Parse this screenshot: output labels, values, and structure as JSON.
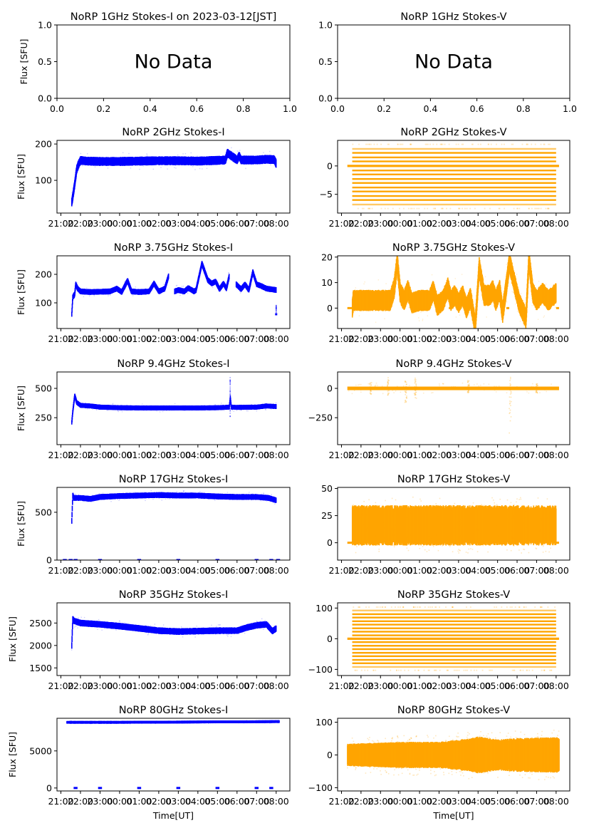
{
  "figure": {
    "date_label": "2023-03-12[JST]",
    "xlabel_bottom": "Time[UT]",
    "ylabel": "Flux [SFU]",
    "no_data_text": "No Data",
    "colors": {
      "stokes_i": "#0000ff",
      "stokes_v": "#ffa500",
      "axes": "#000000"
    }
  },
  "chart_data": [
    {
      "id": "1ghz-i",
      "type": "scatter",
      "row": 0,
      "col": 0,
      "title": "NoRP 1GHz Stokes-I on 2023-03-12[JST]",
      "no_data": true,
      "xlim": [
        0,
        1
      ],
      "ylim": [
        0,
        1
      ],
      "xticks": [
        0.0,
        0.2,
        0.4,
        0.6,
        0.8,
        1.0
      ],
      "xtick_labels": [
        "0.0",
        "0.2",
        "0.4",
        "0.6",
        "0.8",
        "1.0"
      ],
      "yticks": [
        0.0,
        0.5,
        1.0
      ],
      "ytick_labels": [
        "0.0",
        "0.5",
        "1.0"
      ],
      "ylabel": "Flux [SFU]",
      "xlabel": ""
    },
    {
      "id": "1ghz-v",
      "type": "scatter",
      "row": 0,
      "col": 1,
      "title": "NoRP 1GHz Stokes-V",
      "no_data": true,
      "xlim": [
        0,
        1
      ],
      "ylim": [
        0,
        1
      ],
      "xticks": [
        0.0,
        0.2,
        0.4,
        0.6,
        0.8,
        1.0
      ],
      "xtick_labels": [
        "0.0",
        "0.2",
        "0.4",
        "0.6",
        "0.8",
        "1.0"
      ],
      "yticks": [
        0.0,
        0.5,
        1.0
      ],
      "ytick_labels": [
        "0.0",
        "0.5",
        "1.0"
      ],
      "ylabel": "",
      "xlabel": ""
    },
    {
      "id": "2ghz-i",
      "type": "scatter",
      "row": 1,
      "col": 0,
      "stokes": "I",
      "title": "NoRP 2GHz Stokes-I",
      "ylim": [
        10,
        210
      ],
      "yticks": [
        100,
        200
      ],
      "ytick_labels": [
        "100",
        "200"
      ],
      "ylabel": "Flux [SFU]",
      "xlabel": "",
      "x": [
        21.55,
        21.6,
        21.7,
        21.8,
        21.9,
        22.0,
        22.3,
        23.0,
        24.0,
        25.0,
        26.0,
        27.0,
        28.0,
        29.0,
        29.4,
        29.5,
        30.0,
        30.1,
        30.2,
        31.0,
        31.5,
        31.9,
        32.0
      ],
      "y": [
        40,
        55,
        90,
        130,
        145,
        155,
        153,
        152,
        152,
        153,
        154,
        154,
        153,
        155,
        156,
        175,
        156,
        168,
        156,
        156,
        158,
        157,
        145
      ],
      "band": 8
    },
    {
      "id": "2ghz-v",
      "type": "scatter",
      "row": 1,
      "col": 1,
      "stokes": "V",
      "title": "NoRP 2GHz Stokes-V",
      "ylim": [
        -8.3,
        4.5
      ],
      "yticks": [
        -5,
        0
      ],
      "ytick_labels": [
        "−5",
        "0"
      ],
      "ylabel": "",
      "xlabel": "",
      "quantized_levels": [
        3.8,
        3.0,
        2.3,
        1.5,
        0.8,
        0,
        -0.8,
        -1.5,
        -2.3,
        -3.0,
        -3.8,
        -4.5,
        -5.3,
        -6.0,
        -6.8,
        -7.5
      ],
      "x_range": [
        21.55,
        32.0
      ],
      "zero_line_range": [
        21.3,
        32.15
      ]
    },
    {
      "id": "375ghz-i",
      "type": "scatter",
      "row": 2,
      "col": 0,
      "stokes": "I",
      "title": "NoRP 3.75GHz Stokes-I",
      "ylim": [
        10,
        265
      ],
      "yticks": [
        100,
        200
      ],
      "ytick_labels": [
        "100",
        "200"
      ],
      "ylabel": "Flux [SFU]",
      "xlabel": "",
      "x": [
        21.55,
        21.6,
        21.7,
        21.75,
        21.85,
        22.0,
        22.5,
        23.5,
        23.85,
        24.1,
        24.4,
        24.6,
        25.0,
        25.5,
        25.75,
        26.0,
        26.3,
        26.5,
        26.55,
        26.8,
        27.0,
        27.3,
        27.5,
        27.8,
        27.9,
        28.2,
        28.5,
        28.7,
        28.9,
        29.1,
        29.3,
        29.45,
        29.6,
        29.8,
        29.95,
        30.2,
        30.4,
        30.6,
        30.8,
        31.0,
        31.2,
        31.5,
        31.7,
        32.0
      ],
      "y": [
        60,
        120,
        130,
        165,
        150,
        140,
        138,
        140,
        150,
        138,
        178,
        140,
        138,
        140,
        168,
        140,
        150,
        195,
        null,
        140,
        145,
        140,
        152,
        140,
        145,
        238,
        180,
        168,
        175,
        148,
        168,
        150,
        195,
        null,
        165,
        148,
        165,
        145,
        208,
        165,
        160,
        150,
        148,
        145
      ],
      "band": 6,
      "end_spike": [
        60,
        95
      ]
    },
    {
      "id": "375ghz-v",
      "type": "scatter",
      "row": 2,
      "col": 1,
      "stokes": "V",
      "title": "NoRP 3.75GHz Stokes-V",
      "ylim": [
        -8,
        20.5
      ],
      "yticks": [
        0,
        10,
        20
      ],
      "ytick_labels": [
        "0",
        "10",
        "20"
      ],
      "ylabel": "",
      "xlabel": "",
      "x": [
        21.55,
        21.6,
        22.5,
        23.5,
        23.7,
        23.85,
        24.0,
        24.2,
        24.4,
        24.6,
        25.0,
        25.5,
        25.7,
        25.9,
        26.2,
        26.45,
        26.6,
        26.8,
        27.0,
        27.2,
        27.4,
        27.6,
        27.85,
        28.05,
        28.3,
        28.6,
        28.75,
        28.9,
        29.1,
        29.25,
        29.45,
        29.6,
        29.85,
        30.1,
        30.45,
        30.6,
        30.8,
        31.0,
        31.3,
        31.6,
        32.0
      ],
      "y": [
        0,
        3,
        3,
        3,
        8,
        18,
        6,
        3,
        7,
        2,
        3,
        3,
        7,
        1,
        3,
        8,
        3,
        5,
        2,
        5,
        0,
        4,
        -7,
        16,
        5,
        5,
        7,
        3,
        7,
        -2,
        9,
        18,
        10,
        2,
        -4,
        19,
        6,
        3,
        6,
        3,
        6
      ],
      "band": 3,
      "zero_segments": [
        [
          21.3,
          21.55
        ],
        [
          26.5,
          26.65
        ],
        [
          29.45,
          29.6
        ],
        [
          32.0,
          32.15
        ]
      ]
    },
    {
      "id": "94ghz-i",
      "type": "scatter",
      "row": 3,
      "col": 0,
      "stokes": "I",
      "title": "NoRP 9.4GHz Stokes-I",
      "ylim": [
        20,
        640
      ],
      "yticks": [
        250,
        500
      ],
      "ytick_labels": [
        "250",
        "500"
      ],
      "ylabel": "Flux [SFU]",
      "xlabel": "",
      "x": [
        21.55,
        21.6,
        21.7,
        21.8,
        22.0,
        22.5,
        23.0,
        24.0,
        25.0,
        26.0,
        27.0,
        28.0,
        29.0,
        29.6,
        29.65,
        29.7,
        30.0,
        31.0,
        31.5,
        32.0
      ],
      "y": [
        210,
        300,
        440,
        380,
        355,
        350,
        340,
        335,
        333,
        333,
        333,
        333,
        335,
        340,
        420,
        340,
        338,
        340,
        350,
        345
      ],
      "band": 12,
      "spike": {
        "x": 29.65,
        "ymax": 595,
        "ymin": 255
      }
    },
    {
      "id": "94ghz-v",
      "type": "scatter",
      "row": 3,
      "col": 1,
      "stokes": "V",
      "title": "NoRP 9.4GHz Stokes-V",
      "ylim": [
        -480,
        140
      ],
      "yticks": [
        -250,
        0
      ],
      "ytick_labels": [
        "−250",
        "0"
      ],
      "ylabel": "",
      "xlabel": "",
      "x_range": [
        21.3,
        32.15
      ],
      "center": 0,
      "band": 8,
      "spikes": [
        {
          "x": 22.5,
          "ymin": -50,
          "ymax": 50
        },
        {
          "x": 23.4,
          "ymin": -60,
          "ymax": 100
        },
        {
          "x": 24.3,
          "ymin": -120,
          "ymax": 80
        },
        {
          "x": 24.8,
          "ymin": -100,
          "ymax": 90
        },
        {
          "x": 27.5,
          "ymin": -40,
          "ymax": 70
        },
        {
          "x": 29.65,
          "ymin": -420,
          "ymax": 120
        },
        {
          "x": 31.0,
          "ymin": -40,
          "ymax": 40
        }
      ]
    },
    {
      "id": "17ghz-i",
      "type": "scatter",
      "row": 4,
      "col": 0,
      "stokes": "I",
      "title": "NoRP 17GHz Stokes-I",
      "ylim": [
        0,
        760
      ],
      "yticks": [
        0,
        500
      ],
      "ytick_labels": [
        "0",
        "500"
      ],
      "ylabel": "Flux [SFU]",
      "xlabel": "",
      "x": [
        21.55,
        21.6,
        21.65,
        22.0,
        22.5,
        23.0,
        24.0,
        25.0,
        26.0,
        27.0,
        28.0,
        29.0,
        30.0,
        31.0,
        31.6,
        32.0
      ],
      "y": [
        410,
        680,
        650,
        650,
        640,
        660,
        670,
        675,
        680,
        675,
        675,
        665,
        660,
        660,
        650,
        625
      ],
      "band": 18,
      "zero_marks_x": [
        21.2,
        21.5,
        21.75,
        23.0,
        25.0,
        27.0,
        29.0,
        31.0,
        31.75,
        32.1
      ]
    },
    {
      "id": "17ghz-v",
      "type": "scatter",
      "row": 4,
      "col": 1,
      "stokes": "V",
      "title": "NoRP 17GHz Stokes-V",
      "ylim": [
        -16,
        51
      ],
      "yticks": [
        0,
        25,
        50
      ],
      "ytick_labels": [
        "0",
        "25",
        "50"
      ],
      "ylabel": "",
      "xlabel": "",
      "x_range": [
        21.55,
        32.0
      ],
      "center": 16,
      "band": 14,
      "outlier_spread": 26,
      "zero_segments": [
        [
          21.3,
          21.55
        ],
        [
          32.0,
          32.15
        ]
      ]
    },
    {
      "id": "35ghz-i",
      "type": "scatter",
      "row": 5,
      "col": 0,
      "stokes": "I",
      "title": "NoRP 35GHz Stokes-I",
      "ylim": [
        1330,
        2950
      ],
      "yticks": [
        1500,
        2000,
        2500
      ],
      "ytick_labels": [
        "1500",
        "2000",
        "2500"
      ],
      "ylabel": "Flux [SFU]",
      "xlabel": "",
      "x": [
        21.55,
        21.6,
        21.65,
        22.0,
        23.0,
        24.0,
        25.0,
        26.0,
        27.0,
        28.0,
        29.0,
        30.0,
        30.5,
        31.0,
        31.5,
        31.8,
        32.0
      ],
      "y": [
        2000,
        2600,
        2550,
        2500,
        2470,
        2430,
        2380,
        2330,
        2310,
        2320,
        2330,
        2330,
        2400,
        2450,
        2470,
        2320,
        2380
      ],
      "band": 45
    },
    {
      "id": "35ghz-v",
      "type": "scatter",
      "row": 5,
      "col": 1,
      "stokes": "V",
      "title": "NoRP 35GHz Stokes-V",
      "ylim": [
        -120,
        117
      ],
      "yticks": [
        -100,
        0,
        100
      ],
      "ytick_labels": [
        "−100",
        "0",
        "100"
      ],
      "ylabel": "",
      "xlabel": "",
      "quantized_levels": [
        103,
        92,
        80,
        69,
        57,
        46,
        34,
        23,
        11,
        0,
        -11,
        -23,
        -34,
        -46,
        -57,
        -69,
        -80,
        -92,
        -103
      ],
      "x_range": [
        21.55,
        32.0
      ],
      "zero_line_range": [
        21.3,
        32.15
      ]
    },
    {
      "id": "80ghz-i",
      "type": "scatter",
      "row": 6,
      "col": 0,
      "stokes": "I",
      "title": "NoRP 80GHz Stokes-I",
      "ylim": [
        -400,
        9400
      ],
      "yticks": [
        0,
        5000
      ],
      "ytick_labels": [
        "0",
        "5000"
      ],
      "ylabel": "Flux [SFU]",
      "xlabel": "Time[UT]",
      "x": [
        21.3,
        24.0,
        28.0,
        32.15
      ],
      "y": [
        8850,
        8850,
        8900,
        8950
      ],
      "band": 70,
      "zero_marks_x": [
        21.75,
        23.0,
        25.0,
        27.0,
        29.0,
        31.0,
        31.75
      ]
    },
    {
      "id": "80ghz-v",
      "type": "scatter",
      "row": 6,
      "col": 1,
      "stokes": "V",
      "title": "NoRP 80GHz Stokes-V",
      "ylim": [
        -110,
        112
      ],
      "yticks": [
        -100,
        0,
        100
      ],
      "ytick_labels": [
        "−100",
        "0",
        "100"
      ],
      "ylabel": "",
      "xlabel": "Time[UT]",
      "x_range": [
        21.3,
        32.15
      ],
      "center": 0,
      "band_profile": {
        "x": [
          21.3,
          24.0,
          26.0,
          27.5,
          28.0,
          29.0,
          30.0,
          32.15
        ],
        "half_width": [
          32,
          38,
          38,
          48,
          55,
          45,
          50,
          52
        ]
      }
    }
  ],
  "time_axis": {
    "xlim": [
      20.8,
      32.7
    ],
    "ticks": [
      21,
      22,
      23,
      24,
      25,
      26,
      27,
      28,
      29,
      30,
      31,
      32
    ],
    "tick_labels": [
      "21:00",
      "22:00",
      "23:00",
      "00:00",
      "01:00",
      "02:00",
      "03:00",
      "04:00",
      "05:00",
      "06:00",
      "07:00",
      "08:00"
    ]
  }
}
